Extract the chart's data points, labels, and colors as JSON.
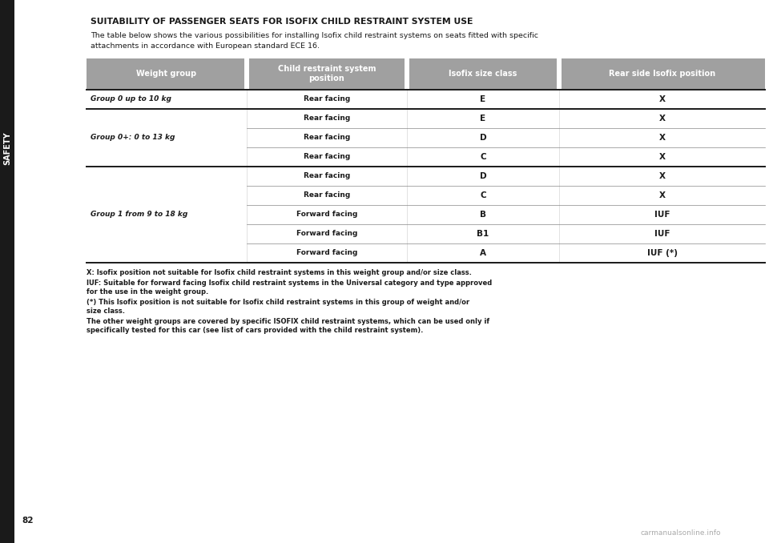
{
  "title": "SUITABILITY OF PASSENGER SEATS FOR ISOFIX CHILD RESTRAINT SYSTEM USE",
  "subtitle1": "The table below shows the various possibilities for installing Isofix child restraint systems on seats fitted with specific",
  "subtitle2": "attachments in accordance with European standard ECE 16.",
  "sidebar_text": "SAFETY",
  "page_number": "82",
  "watermark": "carmanualsonline.info",
  "header_bg": "#a0a0a0",
  "header_text_color": "#ffffff",
  "col_headers": [
    "Weight group",
    "Child restraint system\nposition",
    "Isofix size class",
    "Rear side Isofix position"
  ],
  "rows": [
    {
      "weight_group": "Group 0 up to 10 kg",
      "position": "Rear facing",
      "size_class": "E",
      "isofix_pos": "X"
    },
    {
      "weight_group": "Group 0+: 0 to 13 kg",
      "position": "Rear facing",
      "size_class": "E",
      "isofix_pos": "X"
    },
    {
      "weight_group": "",
      "position": "Rear facing",
      "size_class": "D",
      "isofix_pos": "X"
    },
    {
      "weight_group": "",
      "position": "Rear facing",
      "size_class": "C",
      "isofix_pos": "X"
    },
    {
      "weight_group": "Group 1 from 9 to 18 kg",
      "position": "Rear facing",
      "size_class": "D",
      "isofix_pos": "X"
    },
    {
      "weight_group": "",
      "position": "Rear facing",
      "size_class": "C",
      "isofix_pos": "X"
    },
    {
      "weight_group": "",
      "position": "Forward facing",
      "size_class": "B",
      "isofix_pos": "IUF"
    },
    {
      "weight_group": "",
      "position": "Forward facing",
      "size_class": "B1",
      "isofix_pos": "IUF"
    },
    {
      "weight_group": "",
      "position": "Forward facing",
      "size_class": "A",
      "isofix_pos": "IUF (*)"
    }
  ],
  "groups": [
    {
      "label": "Group 0 up to 10 kg",
      "start": 0,
      "end": 1
    },
    {
      "label": "Group 0+: 0 to 13 kg",
      "start": 1,
      "end": 4
    },
    {
      "label": "Group 1 from 9 to 18 kg",
      "start": 4,
      "end": 9
    }
  ],
  "footnotes": [
    "X: Isofix position not suitable for Isofix child restraint systems in this weight group and/or size class.",
    "IUF: Suitable for forward facing Isofix child restraint systems in the Universal category and type approved for the use in the weight group.",
    "(*) This Isofix position is not suitable for Isofix child restraint systems in this group of weight and/or size class.",
    "The other weight groups are covered by specific ISOFIX child restraint systems, which can be used only if specifically tested for this car (see list of cars provided with the child restraint system)."
  ],
  "bg_color": "#ffffff",
  "text_color": "#1a1a1a",
  "sidebar_color": "#1a1a1a",
  "thin_line_color": "#888888",
  "thick_line_color": "#1a1a1a"
}
